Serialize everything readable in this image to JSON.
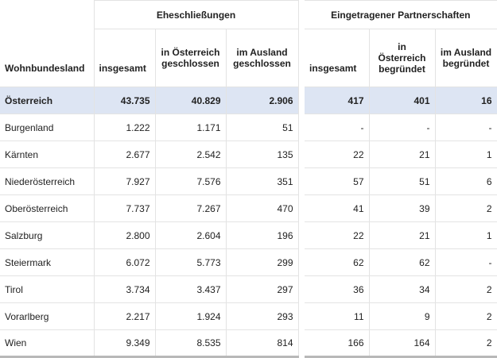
{
  "header": {
    "group_marriages": "Eheschließungen",
    "group_partnerships": "Eingetragener Partnerschaften",
    "col_state": "Wohnbundesland",
    "col_m_total": "insgesamt",
    "col_m_at": "in Österreich geschlossen",
    "col_m_abroad": "im Ausland geschlossen",
    "col_p_total": "insgesamt",
    "col_p_at": "in Österreich begründet",
    "col_p_abroad": "im Ausland begründet"
  },
  "rows": [
    {
      "name": "Österreich",
      "m_total": "43.735",
      "m_at": "40.829",
      "m_abroad": "2.906",
      "p_total": "417",
      "p_at": "401",
      "p_abroad": "16"
    },
    {
      "name": "Burgenland",
      "m_total": "1.222",
      "m_at": "1.171",
      "m_abroad": "51",
      "p_total": "-",
      "p_at": "-",
      "p_abroad": "-"
    },
    {
      "name": "Kärnten",
      "m_total": "2.677",
      "m_at": "2.542",
      "m_abroad": "135",
      "p_total": "22",
      "p_at": "21",
      "p_abroad": "1"
    },
    {
      "name": "Niederösterreich",
      "m_total": "7.927",
      "m_at": "7.576",
      "m_abroad": "351",
      "p_total": "57",
      "p_at": "51",
      "p_abroad": "6"
    },
    {
      "name": "Oberösterreich",
      "m_total": "7.737",
      "m_at": "7.267",
      "m_abroad": "470",
      "p_total": "41",
      "p_at": "39",
      "p_abroad": "2"
    },
    {
      "name": "Salzburg",
      "m_total": "2.800",
      "m_at": "2.604",
      "m_abroad": "196",
      "p_total": "22",
      "p_at": "21",
      "p_abroad": "1"
    },
    {
      "name": "Steiermark",
      "m_total": "6.072",
      "m_at": "5.773",
      "m_abroad": "299",
      "p_total": "62",
      "p_at": "62",
      "p_abroad": "-"
    },
    {
      "name": "Tirol",
      "m_total": "3.734",
      "m_at": "3.437",
      "m_abroad": "297",
      "p_total": "36",
      "p_at": "34",
      "p_abroad": "2"
    },
    {
      "name": "Vorarlberg",
      "m_total": "2.217",
      "m_at": "1.924",
      "m_abroad": "293",
      "p_total": "11",
      "p_at": "9",
      "p_abroad": "2"
    },
    {
      "name": "Wien",
      "m_total": "9.349",
      "m_at": "8.535",
      "m_abroad": "814",
      "p_total": "166",
      "p_at": "164",
      "p_abroad": "2"
    }
  ]
}
